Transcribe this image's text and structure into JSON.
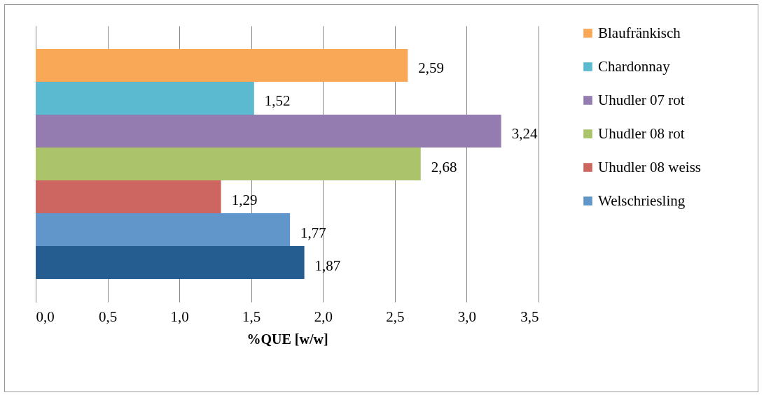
{
  "chart_data": {
    "type": "bar",
    "orientation": "horizontal",
    "xlabel": "%QUE [w/w]",
    "categories": [
      null
    ],
    "series": [
      {
        "name": "Blaufränkisch",
        "color": "#f9a857",
        "values": [
          2.59
        ],
        "value_labels": [
          "2,59"
        ]
      },
      {
        "name": "Chardonnay",
        "color": "#5bb9d0",
        "values": [
          1.52
        ],
        "value_labels": [
          "1,52"
        ]
      },
      {
        "name": "Uhudler 07 rot",
        "color": "#947cb1",
        "values": [
          3.24
        ],
        "value_labels": [
          "3,24"
        ]
      },
      {
        "name": "Uhudler 08 rot",
        "color": "#abc46b",
        "values": [
          2.68
        ],
        "value_labels": [
          "2,68"
        ]
      },
      {
        "name": "Uhudler 08 weiss",
        "color": "#cd6660",
        "values": [
          1.29
        ],
        "value_labels": [
          "1,29"
        ]
      },
      {
        "name": "Welschriesling",
        "color": "#6096c9",
        "values": [
          1.77
        ],
        "value_labels": [
          "1,77"
        ]
      },
      {
        "color": "#265d90",
        "values": [
          1.87
        ],
        "value_labels": [
          "1,87"
        ]
      }
    ],
    "xlim": [
      0,
      3.5
    ],
    "xticks": [
      {
        "value": 0,
        "label": "0,0"
      },
      {
        "value": 0.5,
        "label": "0,5"
      },
      {
        "value": 1,
        "label": "1,0"
      },
      {
        "value": 1.5,
        "label": "1,5"
      },
      {
        "value": 2,
        "label": "2,0"
      },
      {
        "value": 2.5,
        "label": "2,5"
      },
      {
        "value": 3,
        "label": "3,0"
      },
      {
        "value": 3.5,
        "label": "3,5"
      }
    ],
    "grid": "x",
    "legend": "right"
  }
}
